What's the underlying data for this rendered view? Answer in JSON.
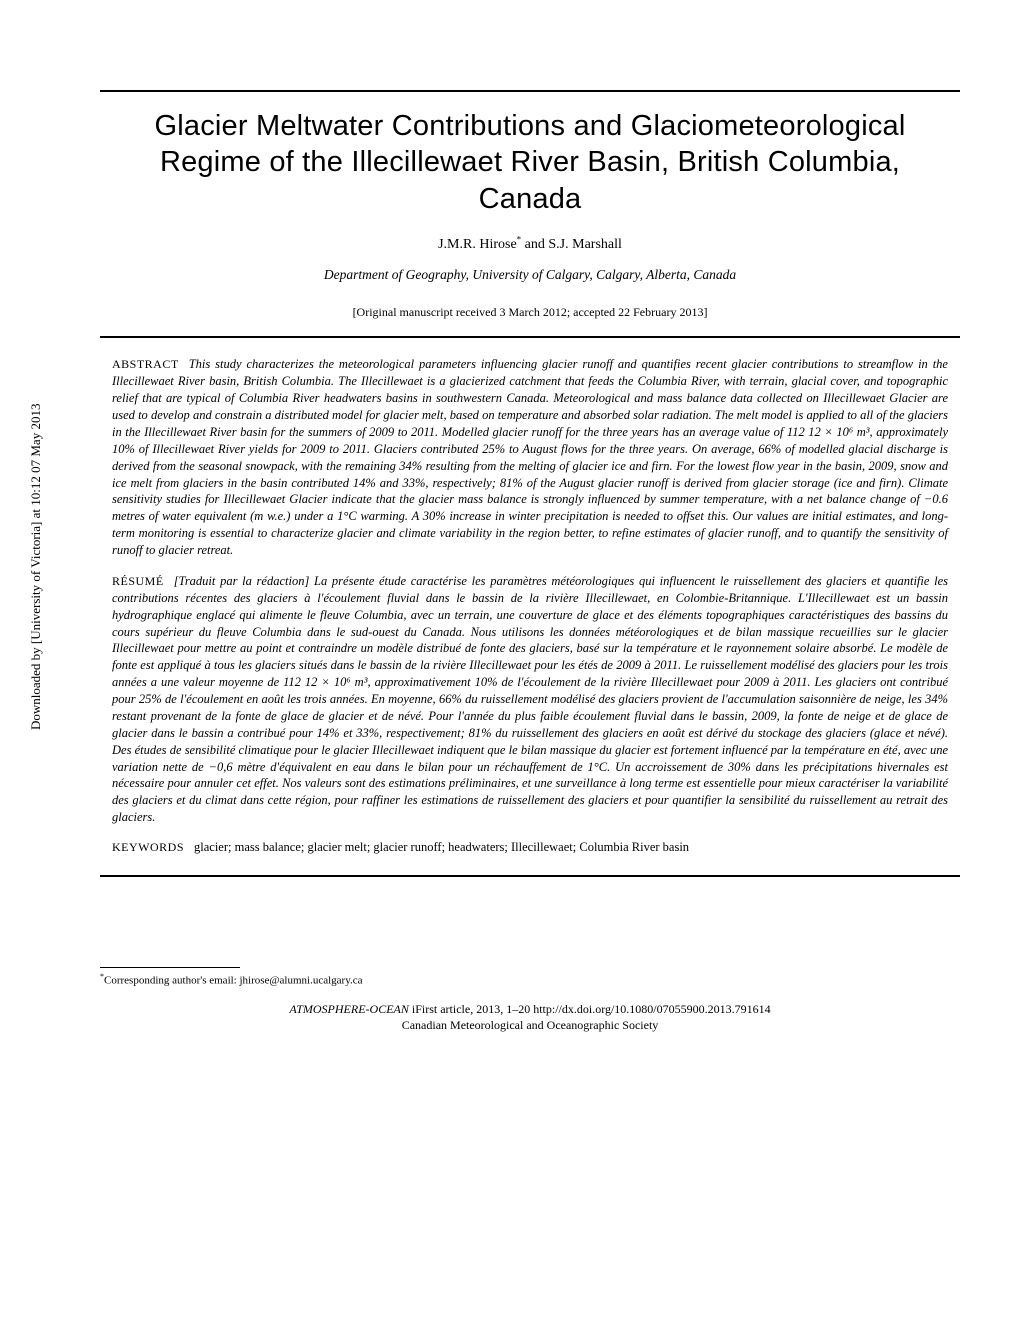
{
  "sidebar_download": "Downloaded by [University of Victoria] at 10:12 07 May 2013",
  "title": "Glacier Meltwater Contributions and Glaciometeorological Regime of the Illecillewaet River Basin, British Columbia, Canada",
  "authors": "J.M.R. Hirose* and S.J. Marshall",
  "affiliation": "Department of Geography, University of Calgary, Calgary, Alberta, Canada",
  "dates": "[Original manuscript received 3 March 2012; accepted 22 February 2013]",
  "abstract_label": "ABSTRACT",
  "abstract_en": "This study characterizes the meteorological parameters influencing glacier runoff and quantifies recent glacier contributions to streamflow in the Illecillewaet River basin, British Columbia. The Illecillewaet is a glacierized catchment that feeds the Columbia River, with terrain, glacial cover, and topographic relief that are typical of Columbia River headwaters basins in southwestern Canada. Meteorological and mass balance data collected on Illecillewaet Glacier are used to develop and constrain a distributed model for glacier melt, based on temperature and absorbed solar radiation. The melt model is applied to all of the glaciers in the Illecillewaet River basin for the summers of 2009 to 2011. Modelled glacier runoff for the three years has an average value of 112   12 × 10⁶ m³, approximately 10% of Illecillewaet River yields for 2009 to 2011. Glaciers contributed 25% to August flows for the three years. On average, 66% of modelled glacial discharge is derived from the seasonal snowpack, with the remaining 34% resulting from the melting of glacier ice and firn. For the lowest flow year in the basin, 2009, snow and ice melt from glaciers in the basin contributed 14% and 33%, respectively; 81% of the August glacier runoff is derived from glacier storage (ice and firn). Climate sensitivity studies for Illecillewaet Glacier indicate that the glacier mass balance is strongly influenced by summer temperature, with a net balance change of −0.6 metres of water equivalent (m w.e.) under a 1°C warming. A 30% increase in winter precipitation is needed to offset this. Our values are initial estimates, and long-term monitoring is essential to characterize glacier and climate variability in the region better, to refine estimates of glacier runoff, and to quantify the sensitivity of runoff to glacier retreat.",
  "resume_label": "RÉSUMÉ",
  "abstract_fr": "[Traduit par la rédaction] La présente étude caractérise les paramètres météorologiques qui influencent le ruissellement des glaciers et quantifie les contributions récentes des glaciers à l'écoulement fluvial dans le bassin de la rivière Illecillewaet, en Colombie-Britannique. L'Illecillewaet est un bassin hydrographique englacé qui alimente le fleuve Columbia, avec un terrain, une couverture de glace et des éléments topographiques caractéristiques des bassins du cours supérieur du fleuve Columbia dans le sud-ouest du Canada. Nous utilisons les données météorologiques et de bilan massique recueillies sur le glacier Illecillewaet pour mettre au point et contraindre un modèle distribué de fonte des glaciers, basé sur la température et le rayonnement solaire absorbé. Le modèle de fonte est appliqué à tous les glaciers situés dans le bassin de la rivière Illecillewaet pour les étés de 2009 à 2011. Le ruissellement modélisé des glaciers pour les trois années a une valeur moyenne de 112   12 × 10⁶ m³, approximativement 10% de l'écoulement de la rivière Illecillewaet pour 2009 à 2011. Les glaciers ont contribué pour 25% de l'écoulement en août les trois années. En moyenne, 66% du ruissellement modélisé des glaciers provient de l'accumulation saisonnière de neige, les 34% restant provenant de la fonte de glace de glacier et de névé. Pour l'année du plus faible écoulement fluvial dans le bassin, 2009, la fonte de neige et de glace de glacier dans le bassin a contribué pour 14% et 33%, respectivement; 81% du ruissellement des glaciers en août est dérivé du stockage des glaciers (glace et névé). Des études de sensibilité climatique pour le glacier Illecillewaet indiquent que le bilan massique du glacier est fortement influencé par la température en été, avec une variation nette de −0,6 mètre d'équivalent en eau dans le bilan pour un réchauffement de 1°C. Un accroissement de 30% dans les précipitations hivernales est nécessaire pour annuler cet effet. Nos valeurs sont des estimations préliminaires, et une surveillance à long terme est essentielle pour mieux caractériser la variabilité des glaciers et du climat dans cette région, pour raffiner les estimations de ruissellement des glaciers et pour quantifier la sensibilité du ruissellement au retrait des glaciers.",
  "keywords_label": "KEYWORDS",
  "keywords": "glacier; mass balance; glacier melt; glacier runoff; headwaters; Illecillewaet; Columbia River basin",
  "footnote": "*Corresponding author's email: jhirose@alumni.ucalgary.ca",
  "footer_line1_a": "ATMOSPHERE-OCEAN",
  "footer_line1_b": " iFirst article, 2013, 1–20   http://dx.doi.org/10.1080/07055900.2013.791614",
  "footer_line2": "Canadian Meteorological and Oceanographic Society"
}
